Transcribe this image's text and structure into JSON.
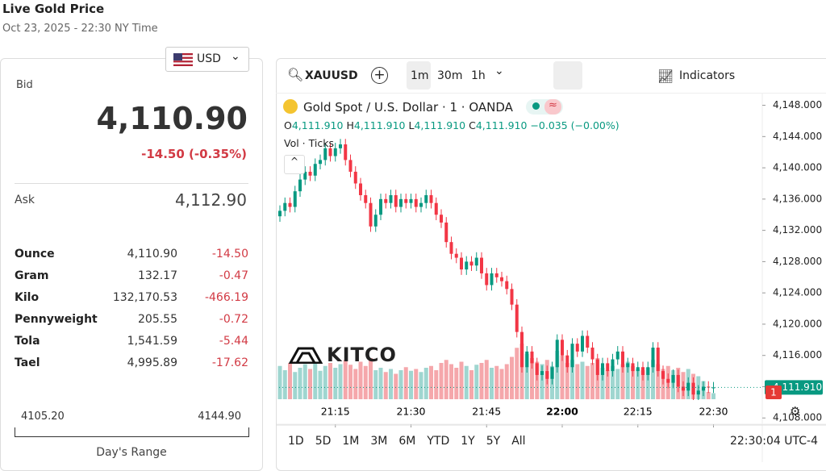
{
  "header": {
    "title": "Live Gold Price",
    "subtitle": "Oct 23, 2025 - 22:30 NY Time"
  },
  "currency": "USD",
  "quote": {
    "bid_label": "Bid",
    "bid": "4,110.90",
    "change": "-14.50 (-0.35%)",
    "ask_label": "Ask",
    "ask": "4,112.90"
  },
  "table": {
    "rows": [
      [
        "Ounce",
        "4,110.90",
        "-14.50"
      ],
      [
        "Gram",
        "132.17",
        "-0.47"
      ],
      [
        "Kilo",
        "132,170.53",
        "-466.19"
      ],
      [
        "Pennyweight",
        "205.55",
        "-0.72"
      ],
      [
        "Tola",
        "1,541.59",
        "-5.44"
      ],
      [
        "Tael",
        "4,995.89",
        "-17.62"
      ]
    ]
  },
  "range": {
    "low": "4105.20",
    "high": "4144.90",
    "label": "Day's Range"
  },
  "toolbar": {
    "symbol": "XAUUSD",
    "intervals": [
      "1m",
      "30m",
      "1h"
    ],
    "indicators": "Indicators"
  },
  "chart_data": {
    "type": "candlestick",
    "title": "Gold Spot / U.S. Dollar · 1 · OANDA",
    "ohlc_legend": [
      {
        "key": "O",
        "value": "4,111.910"
      },
      {
        "key": "H",
        "value": "4,111.910"
      },
      {
        "key": "L",
        "value": "4,111.910"
      },
      {
        "key": "C",
        "value": "4,111.910"
      }
    ],
    "legend_change": "−0.035 (−0.00%)",
    "volume_label": "Vol · Ticks",
    "watermark": "KITCO",
    "x": [
      "21:04",
      "21:05",
      "21:06",
      "21:07",
      "21:08",
      "21:09",
      "21:10",
      "21:11",
      "21:12",
      "21:13",
      "21:14",
      "21:15",
      "21:16",
      "21:17",
      "21:18",
      "21:19",
      "21:20",
      "21:21",
      "21:22",
      "21:23",
      "21:24",
      "21:25",
      "21:26",
      "21:27",
      "21:28",
      "21:29",
      "21:30",
      "21:31",
      "21:32",
      "21:33",
      "21:34",
      "21:35",
      "21:36",
      "21:37",
      "21:38",
      "21:39",
      "21:40",
      "21:41",
      "21:42",
      "21:43",
      "21:44",
      "21:45",
      "21:46",
      "21:47",
      "21:48",
      "21:49",
      "21:50",
      "21:51",
      "21:52",
      "21:53",
      "21:54",
      "21:55",
      "21:56",
      "21:57",
      "21:58",
      "21:59",
      "22:00",
      "22:01",
      "22:02",
      "22:03",
      "22:04",
      "22:05",
      "22:06",
      "22:07",
      "22:08",
      "22:09",
      "22:10",
      "22:11",
      "22:12",
      "22:13",
      "22:14",
      "22:15",
      "22:16",
      "22:17",
      "22:18",
      "22:19",
      "22:20",
      "22:21",
      "22:22",
      "22:23",
      "22:24",
      "22:25",
      "22:26",
      "22:27",
      "22:28",
      "22:29",
      "22:30"
    ],
    "open": [
      4133.8,
      4134.5,
      4135.5,
      4135.0,
      4137.0,
      4138.5,
      4139.5,
      4139.0,
      4140.5,
      4141.0,
      4142.5,
      4141.5,
      4142.5,
      4143.0,
      4141.0,
      4139.5,
      4138.0,
      4136.5,
      4135.5,
      4132.5,
      4134.0,
      4136.0,
      4135.5,
      4136.5,
      4135.0,
      4136.0,
      4135.5,
      4136.0,
      4135.0,
      4135.5,
      4136.5,
      4135.5,
      4134.0,
      4133.0,
      4130.5,
      4129.0,
      4128.5,
      4127.0,
      4128.0,
      4127.5,
      4128.5,
      4126.5,
      4125.0,
      4126.5,
      4126.0,
      4125.5,
      4124.5,
      4122.5,
      4119.0,
      4114.5,
      4116.5,
      4115.0,
      4113.5,
      4114.0,
      4113.0,
      4114.5,
      4118.0,
      4116.0,
      4114.5,
      4117.5,
      4116.5,
      4118.5,
      4117.0,
      4115.5,
      4113.5,
      4115.0,
      4114.0,
      4115.5,
      4116.5,
      4114.5,
      4115.0,
      4114.0,
      4114.5,
      4113.5,
      4114.5,
      4117.0,
      4114.0,
      4113.0,
      4112.5,
      4113.5,
      4112.0,
      4111.5,
      4112.5,
      4111.0,
      4111.5,
      4112.0,
      4111.9
    ],
    "high": [
      4135.2,
      4136.2,
      4136.2,
      4137.7,
      4139.2,
      4140.2,
      4140.2,
      4141.2,
      4141.7,
      4143.2,
      4143.2,
      4143.2,
      4143.7,
      4143.7,
      4141.7,
      4140.2,
      4138.7,
      4137.2,
      4136.2,
      4134.7,
      4136.7,
      4136.7,
      4137.2,
      4137.2,
      4136.7,
      4136.7,
      4136.7,
      4136.7,
      4136.2,
      4137.2,
      4137.2,
      4136.2,
      4134.7,
      4133.7,
      4131.2,
      4129.7,
      4129.2,
      4128.7,
      4128.7,
      4129.2,
      4129.2,
      4127.2,
      4127.2,
      4127.2,
      4126.7,
      4126.2,
      4125.2,
      4123.2,
      4119.7,
      4117.2,
      4117.2,
      4115.7,
      4114.7,
      4114.7,
      4115.2,
      4118.7,
      4118.7,
      4116.7,
      4118.2,
      4118.2,
      4119.2,
      4119.2,
      4117.7,
      4116.2,
      4115.7,
      4115.7,
      4116.2,
      4117.2,
      4117.2,
      4115.7,
      4115.7,
      4115.2,
      4115.2,
      4115.2,
      4117.7,
      4117.7,
      4114.7,
      4113.7,
      4114.2,
      4114.2,
      4112.7,
      4113.2,
      4113.2,
      4112.2,
      4112.7,
      4112.7,
      4112.6
    ],
    "low": [
      4133.1,
      4133.8,
      4134.3,
      4134.3,
      4136.3,
      4137.8,
      4138.3,
      4138.3,
      4139.8,
      4140.3,
      4140.8,
      4140.8,
      4141.8,
      4140.3,
      4138.8,
      4137.3,
      4135.8,
      4134.8,
      4131.8,
      4131.8,
      4133.3,
      4134.8,
      4134.8,
      4134.3,
      4134.3,
      4134.8,
      4134.8,
      4134.3,
      4134.3,
      4134.8,
      4134.8,
      4133.3,
      4132.3,
      4129.8,
      4128.3,
      4127.8,
      4126.3,
      4126.3,
      4126.8,
      4126.8,
      4125.8,
      4124.3,
      4124.3,
      4125.3,
      4124.8,
      4123.8,
      4121.8,
      4118.3,
      4113.8,
      4113.8,
      4114.3,
      4112.8,
      4112.8,
      4112.3,
      4112.3,
      4113.8,
      4115.3,
      4113.8,
      4113.8,
      4115.8,
      4115.8,
      4116.3,
      4114.8,
      4112.8,
      4112.8,
      4113.3,
      4113.3,
      4114.8,
      4113.8,
      4113.8,
      4113.3,
      4113.3,
      4112.8,
      4112.8,
      4113.8,
      4113.3,
      4112.3,
      4111.8,
      4111.8,
      4111.3,
      4110.8,
      4110.8,
      4110.3,
      4110.3,
      4110.8,
      4111.2,
      4111.2
    ],
    "close": [
      4134.5,
      4135.5,
      4135.0,
      4137.0,
      4138.5,
      4139.5,
      4139.0,
      4140.5,
      4141.0,
      4142.5,
      4141.5,
      4142.5,
      4143.0,
      4141.0,
      4139.5,
      4138.0,
      4136.5,
      4135.5,
      4132.5,
      4134.0,
      4136.0,
      4135.5,
      4136.5,
      4135.0,
      4136.0,
      4135.5,
      4136.0,
      4135.0,
      4135.5,
      4136.5,
      4135.5,
      4134.0,
      4133.0,
      4130.5,
      4129.0,
      4128.5,
      4127.0,
      4128.0,
      4127.5,
      4128.5,
      4126.5,
      4125.0,
      4126.5,
      4126.0,
      4125.5,
      4124.5,
      4122.5,
      4119.0,
      4114.5,
      4116.5,
      4115.0,
      4113.5,
      4114.0,
      4113.0,
      4114.5,
      4118.0,
      4116.0,
      4114.5,
      4117.5,
      4116.5,
      4118.5,
      4117.0,
      4115.5,
      4113.5,
      4115.0,
      4114.0,
      4115.5,
      4116.5,
      4114.5,
      4115.0,
      4114.0,
      4114.5,
      4113.5,
      4114.5,
      4117.0,
      4114.0,
      4113.0,
      4112.5,
      4113.5,
      4112.0,
      4111.5,
      4112.5,
      4111.0,
      4111.5,
      4112.0,
      4111.9,
      4111.9
    ],
    "volume": [
      55,
      48,
      60,
      45,
      52,
      58,
      50,
      62,
      47,
      55,
      60,
      52,
      58,
      65,
      57,
      50,
      62,
      55,
      68,
      48,
      52,
      45,
      50,
      42,
      48,
      53,
      47,
      50,
      45,
      52,
      55,
      48,
      60,
      65,
      58,
      52,
      62,
      55,
      48,
      57,
      60,
      65,
      52,
      55,
      50,
      58,
      70,
      85,
      92,
      75,
      68,
      62,
      58,
      65,
      55,
      80,
      72,
      60,
      65,
      58,
      62,
      55,
      60,
      68,
      52,
      48,
      55,
      50,
      58,
      62,
      55,
      50,
      48,
      52,
      65,
      58,
      50,
      55,
      48,
      52,
      45,
      50,
      42,
      38,
      30,
      12,
      10
    ],
    "volume_ylim": [
      0,
      100
    ],
    "up_color": "#089981",
    "down_color": "#f23645",
    "volume_up_color": "#9fd6d0",
    "volume_down_color": "#f5a7ab",
    "ylim": [
      4107.2,
      4149.5
    ],
    "yticks": [
      {
        "value": 4108,
        "label": "4,108.000"
      },
      {
        "value": 4112,
        "label": "4,112.000"
      },
      {
        "value": 4116,
        "label": "4,116.000"
      },
      {
        "value": 4120,
        "label": "4,120.000"
      },
      {
        "value": 4124,
        "label": "4,124.000"
      },
      {
        "value": 4128,
        "label": "4,128.000"
      },
      {
        "value": 4132,
        "label": "4,132.000"
      },
      {
        "value": 4136,
        "label": "4,136.000"
      },
      {
        "value": 4140,
        "label": "4,140.000"
      },
      {
        "value": 4144,
        "label": "4,144.000"
      },
      {
        "value": 4148,
        "label": "4,148.000"
      }
    ],
    "xticks": [
      "21:15",
      "21:30",
      "21:45",
      "22:00",
      "22:15",
      "22:30"
    ],
    "last_price": {
      "value": 4111.91,
      "label": "4,111.910"
    },
    "badge": "1"
  },
  "footer": {
    "ranges": [
      "1D",
      "5D",
      "1M",
      "3M",
      "6M",
      "YTD",
      "1Y",
      "5Y",
      "All"
    ],
    "clock": "22:30:04 UTC-4"
  }
}
